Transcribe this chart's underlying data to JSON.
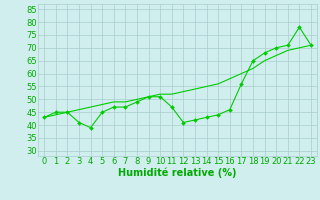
{
  "xlabel": "Humidité relative (%)",
  "x_ticks": [
    0,
    1,
    2,
    3,
    4,
    5,
    6,
    7,
    8,
    9,
    10,
    11,
    12,
    13,
    14,
    15,
    16,
    17,
    18,
    19,
    20,
    21,
    22,
    23
  ],
  "ylim": [
    28,
    87
  ],
  "xlim": [
    -0.5,
    23.5
  ],
  "yticks": [
    30,
    35,
    40,
    45,
    50,
    55,
    60,
    65,
    70,
    75,
    80,
    85
  ],
  "line1_x": [
    0,
    1,
    2,
    3,
    4,
    5,
    6,
    7,
    8,
    9,
    10,
    11,
    12,
    13,
    14,
    15,
    16,
    17,
    18,
    19,
    20,
    21,
    22,
    23
  ],
  "line1_y": [
    43,
    45,
    45,
    41,
    39,
    45,
    47,
    47,
    49,
    51,
    51,
    47,
    41,
    42,
    43,
    44,
    46,
    56,
    65,
    68,
    70,
    71,
    78,
    71
  ],
  "line2_x": [
    0,
    1,
    2,
    3,
    4,
    5,
    6,
    7,
    8,
    9,
    10,
    11,
    12,
    13,
    14,
    15,
    16,
    17,
    18,
    19,
    20,
    21,
    22,
    23
  ],
  "line2_y": [
    43,
    44,
    45,
    46,
    47,
    48,
    49,
    49,
    50,
    51,
    52,
    52,
    53,
    54,
    55,
    56,
    58,
    60,
    62,
    65,
    67,
    69,
    70,
    71
  ],
  "line_color": "#00cc00",
  "bg_color": "#d0eeee",
  "grid_color": "#aacccc",
  "text_color": "#00aa00",
  "marker": "D",
  "marker_size": 2.0,
  "font_size": 6.0,
  "xlabel_fontsize": 7.0
}
